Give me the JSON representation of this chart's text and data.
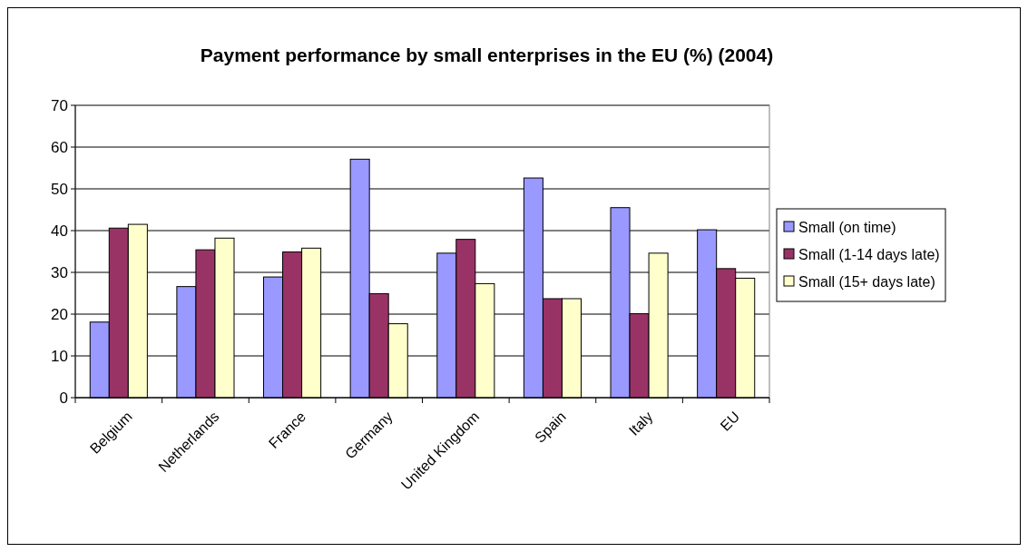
{
  "chart_data": {
    "type": "bar",
    "title": "Payment performance by small enterprises in the EU (%) (2004)",
    "categories": [
      "Belgium",
      "Netherlands",
      "France",
      "Germany",
      "United Kingdom",
      "Spain",
      "Italy",
      "EU"
    ],
    "series": [
      {
        "name": "Small (on time)",
        "color": "#9999ff",
        "values": [
          18.1,
          26.6,
          28.9,
          57.1,
          34.6,
          52.6,
          45.5,
          40.2
        ]
      },
      {
        "name": "Small (1-14 days late)",
        "color": "#993366",
        "values": [
          40.6,
          35.4,
          34.9,
          24.9,
          37.9,
          23.7,
          20.1,
          30.9
        ]
      },
      {
        "name": "Small (15+ days late)",
        "color": "#ffffcc",
        "values": [
          41.5,
          38.2,
          35.8,
          17.7,
          27.3,
          23.7,
          34.6,
          28.6
        ]
      }
    ],
    "ylim": [
      0,
      70
    ],
    "yticks": [
      0,
      10,
      20,
      30,
      40,
      50,
      60,
      70
    ],
    "grid": "y",
    "legend": "right"
  }
}
